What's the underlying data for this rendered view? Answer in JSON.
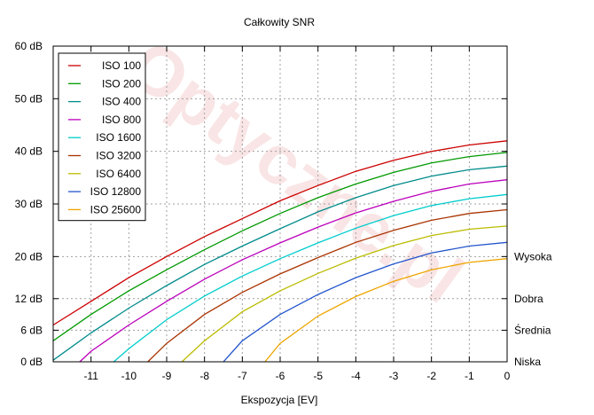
{
  "chart_data": {
    "type": "line",
    "title": "Całkowity SNR",
    "xlabel": "Ekspozycja [EV]",
    "ylabel": "",
    "xlim": [
      -12,
      0
    ],
    "ylim": [
      0,
      60
    ],
    "x_ticks": [
      -11,
      -10,
      -9,
      -8,
      -7,
      -6,
      -5,
      -4,
      -3,
      -2,
      -1,
      0
    ],
    "x_tick_labels": [
      "-11",
      "-10",
      "-9",
      "-8",
      "-7",
      "-6",
      "-5",
      "-4",
      "-3",
      "-2",
      "-1",
      "0"
    ],
    "y_ticks": [
      0,
      6,
      12,
      20,
      30,
      40,
      50,
      60
    ],
    "y_tick_labels": [
      "0 dB",
      "6 dB",
      "12 dB",
      "20 dB",
      "30 dB",
      "40 dB",
      "50 dB",
      "60 dB"
    ],
    "right_labels": [
      {
        "y": 20,
        "text": "Wysoka"
      },
      {
        "y": 12,
        "text": "Dobra"
      },
      {
        "y": 6,
        "text": "Średnia"
      },
      {
        "y": 0,
        "text": "Niska"
      }
    ],
    "grid": true,
    "legend_position": "top-left",
    "watermark": "Optyczne.pl",
    "series": [
      {
        "name": "ISO 100",
        "color": "#cc0000",
        "x": [
          -12,
          -11,
          -10,
          -9,
          -8,
          -7,
          -6,
          -5,
          -4,
          -3,
          -2,
          -1,
          0
        ],
        "y": [
          7,
          11.5,
          16,
          20,
          23.8,
          27.2,
          30.6,
          33.5,
          36.2,
          38.3,
          40,
          41.2,
          42
        ]
      },
      {
        "name": "ISO 200",
        "color": "#009900",
        "x": [
          -12,
          -11,
          -10,
          -9,
          -8,
          -7,
          -6,
          -5,
          -4,
          -3,
          -2,
          -1,
          0
        ],
        "y": [
          4,
          9,
          13.5,
          17.5,
          21.3,
          24.9,
          28.2,
          31.2,
          33.8,
          36,
          37.8,
          39,
          39.8
        ]
      },
      {
        "name": "ISO 400",
        "color": "#008b8b",
        "x": [
          -12,
          -11,
          -10,
          -9,
          -8,
          -7,
          -6,
          -5,
          -4,
          -3,
          -2,
          -1,
          0
        ],
        "y": [
          0.3,
          5.5,
          10.2,
          14.5,
          18.5,
          22,
          25.3,
          28.5,
          31.2,
          33.5,
          35.3,
          36.5,
          37.2
        ]
      },
      {
        "name": "ISO 800",
        "color": "#bb00bb",
        "x": [
          -11.3,
          -11,
          -10,
          -9,
          -8,
          -7,
          -6,
          -5,
          -4,
          -3,
          -2,
          -1,
          0
        ],
        "y": [
          0,
          2,
          7,
          11.5,
          15.7,
          19.4,
          22.6,
          25.6,
          28.3,
          30.5,
          32.4,
          33.8,
          34.6
        ]
      },
      {
        "name": "ISO 1600",
        "color": "#00cccc",
        "x": [
          -10.4,
          -10,
          -9,
          -8,
          -7,
          -6,
          -5,
          -4,
          -3,
          -2,
          -1,
          0
        ],
        "y": [
          0,
          2.5,
          8,
          12.5,
          16.3,
          19.6,
          22.6,
          25.4,
          27.8,
          29.7,
          31,
          31.8
        ]
      },
      {
        "name": "ISO 3200",
        "color": "#aa3300",
        "x": [
          -9.5,
          -9,
          -8,
          -7,
          -6,
          -5,
          -4,
          -3,
          -2,
          -1,
          0
        ],
        "y": [
          0,
          3.5,
          9,
          13.2,
          16.7,
          19.8,
          22.7,
          25,
          26.9,
          28.2,
          28.9
        ]
      },
      {
        "name": "ISO 6400",
        "color": "#bbbb00",
        "x": [
          -8.6,
          -8,
          -7,
          -6,
          -5,
          -4,
          -3,
          -2,
          -1,
          0
        ],
        "y": [
          0,
          4,
          9.5,
          13.5,
          16.8,
          19.7,
          22.1,
          24,
          25.2,
          25.8
        ]
      },
      {
        "name": "ISO 12800",
        "color": "#2255cc",
        "x": [
          -7.5,
          -7,
          -6,
          -5,
          -4,
          -3,
          -2,
          -1,
          0
        ],
        "y": [
          0,
          4,
          9,
          12.8,
          16,
          18.6,
          20.7,
          22,
          22.7
        ]
      },
      {
        "name": "ISO 25600",
        "color": "#eea500",
        "x": [
          -6.4,
          -6,
          -5,
          -4,
          -3,
          -2,
          -1,
          0
        ],
        "y": [
          0,
          3.5,
          8.7,
          12.4,
          15.3,
          17.5,
          18.9,
          19.6
        ]
      }
    ]
  }
}
